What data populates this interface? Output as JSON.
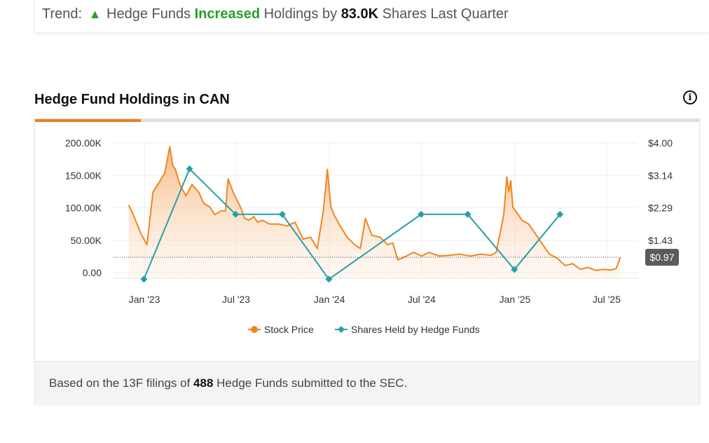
{
  "trend": {
    "label": "Trend:",
    "text_before": "Hedge Funds",
    "direction_word": "Increased",
    "text_middle": "Holdings by",
    "amount": "83.0K",
    "text_after": "Shares Last Quarter"
  },
  "section": {
    "title": "Hedge Fund Holdings in CAN"
  },
  "footer": {
    "prefix": "Based on the 13F filings of",
    "count": "488",
    "suffix": "Hedge Funds submitted to the SEC."
  },
  "colors": {
    "stock": "#f0861e",
    "hedge": "#26a0a6",
    "trend_up": "#2a9d2a",
    "tab_active": "#f07d1a",
    "price_badge": "#5b5b5b"
  },
  "chart_data": {
    "type": "line",
    "title": "Hedge Fund Holdings in CAN",
    "x_tick_labels": [
      "Jan '23",
      "Jul '23",
      "Jan '24",
      "Jul '24",
      "Jan '25",
      "Jul '25"
    ],
    "x_range": [
      "2022-11-01",
      "2025-08-31"
    ],
    "y_left": {
      "tick_labels": [
        "200.00K",
        "150.00K",
        "100.00K",
        "50.00K",
        "0.00"
      ],
      "ylim": [
        0,
        200000
      ]
    },
    "y_right": {
      "tick_labels": [
        "$4.00",
        "$3.14",
        "$2.29",
        "$1.43"
      ],
      "ylim": [
        0.56,
        4.0
      ]
    },
    "last_price_label": "$0.97",
    "grid": true,
    "legend": "bottom-center",
    "series": [
      {
        "name": "Stock Price",
        "axis": "right",
        "type": "area",
        "x": [
          "2022-12-01",
          "2022-12-10",
          "2022-12-25",
          "2023-01-06",
          "2023-01-18",
          "2023-02-01",
          "2023-02-10",
          "2023-02-20",
          "2023-02-26",
          "2023-03-03",
          "2023-03-12",
          "2023-03-24",
          "2023-04-05",
          "2023-04-18",
          "2023-04-28",
          "2023-05-10",
          "2023-05-20",
          "2023-06-01",
          "2023-06-10",
          "2023-06-15",
          "2023-06-28",
          "2023-07-08",
          "2023-07-18",
          "2023-07-26",
          "2023-08-05",
          "2023-08-12",
          "2023-08-22",
          "2023-09-05",
          "2023-09-22",
          "2023-10-10",
          "2023-10-25",
          "2023-11-10",
          "2023-11-25",
          "2023-12-08",
          "2023-12-20",
          "2023-12-28",
          "2024-01-04",
          "2024-01-10",
          "2024-01-20",
          "2024-02-05",
          "2024-02-20",
          "2024-03-02",
          "2024-03-12",
          "2024-03-25",
          "2024-04-10",
          "2024-04-25",
          "2024-05-05",
          "2024-05-15",
          "2024-06-01",
          "2024-06-15",
          "2024-07-01",
          "2024-07-15",
          "2024-08-05",
          "2024-08-25",
          "2024-09-15",
          "2024-10-05",
          "2024-10-25",
          "2024-11-15",
          "2024-11-25",
          "2024-12-02",
          "2024-12-10",
          "2024-12-16",
          "2024-12-20",
          "2024-12-24",
          "2024-12-28",
          "2025-01-05",
          "2025-01-15",
          "2025-01-28",
          "2025-02-10",
          "2025-02-25",
          "2025-03-10",
          "2025-03-25",
          "2025-04-10",
          "2025-04-25",
          "2025-05-10",
          "2025-05-25",
          "2025-06-10",
          "2025-06-25",
          "2025-07-10",
          "2025-07-20",
          "2025-07-28"
        ],
        "y": [
          2.35,
          2.1,
          1.6,
          1.3,
          2.7,
          3.0,
          3.2,
          3.9,
          3.4,
          3.3,
          2.9,
          2.6,
          2.9,
          2.7,
          2.4,
          2.3,
          2.1,
          2.2,
          2.2,
          3.05,
          2.6,
          2.35,
          2.0,
          1.95,
          2.05,
          1.9,
          1.95,
          1.85,
          1.85,
          1.8,
          1.9,
          1.45,
          1.5,
          1.2,
          2.2,
          3.3,
          2.3,
          2.1,
          1.85,
          1.5,
          1.3,
          1.2,
          2.0,
          1.55,
          1.5,
          1.3,
          1.35,
          0.9,
          1.0,
          1.1,
          1.0,
          1.1,
          1.0,
          1.02,
          1.05,
          1.0,
          1.05,
          1.02,
          1.1,
          1.55,
          2.1,
          3.1,
          2.7,
          3.0,
          2.3,
          2.15,
          1.95,
          1.85,
          1.6,
          1.3,
          1.05,
          0.95,
          0.75,
          0.8,
          0.65,
          0.7,
          0.62,
          0.65,
          0.63,
          0.67,
          0.97
        ]
      },
      {
        "name": "Shares Held by Hedge Funds",
        "axis": "left",
        "type": "line",
        "x": [
          "2022-12-31",
          "2023-03-31",
          "2023-06-30",
          "2023-09-30",
          "2023-12-31",
          "2024-06-30",
          "2024-09-30",
          "2024-12-31",
          "2025-03-31"
        ],
        "y": [
          -10000,
          160000,
          90000,
          90000,
          -10000,
          90000,
          90000,
          5000,
          90000
        ]
      }
    ]
  }
}
